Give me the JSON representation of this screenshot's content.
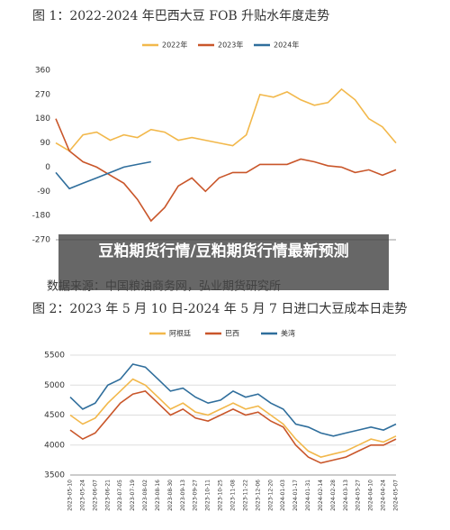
{
  "chart_data": [
    {
      "type": "line",
      "title": "图 1：2022-2024 年巴西大豆 FOB 升贴水年度走势",
      "categories": [
        null,
        null,
        null,
        null,
        null,
        null,
        null,
        null,
        null,
        null,
        null,
        null,
        null,
        null,
        null,
        null,
        null,
        null,
        null,
        null,
        null,
        null,
        null,
        null,
        null,
        null
      ],
      "series": [
        {
          "name": "2022年",
          "color": "#f2b84b",
          "values": [
            90,
            60,
            120,
            130,
            100,
            120,
            110,
            140,
            130,
            100,
            110,
            100,
            90,
            80,
            120,
            270,
            260,
            280,
            250,
            230,
            240,
            290,
            250,
            180,
            150,
            90
          ]
        },
        {
          "name": "2023年",
          "color": "#c9562a",
          "values": [
            180,
            60,
            20,
            0,
            -30,
            -60,
            -120,
            -200,
            -150,
            -70,
            -40,
            -90,
            -40,
            -20,
            -20,
            10,
            10,
            10,
            30,
            20,
            5,
            0,
            -20,
            -10,
            -30,
            -10
          ]
        },
        {
          "name": "2024年",
          "color": "#2f6e9c",
          "values": [
            -20,
            -80,
            -60,
            -40,
            -20,
            0,
            10,
            20,
            null,
            null,
            null,
            null,
            null,
            null,
            null,
            null,
            null,
            null,
            null,
            null,
            null,
            null,
            null,
            null,
            null,
            null
          ]
        }
      ],
      "ylim": [
        -270,
        360
      ],
      "yticks": [
        -270,
        -180,
        -90,
        0,
        90,
        180,
        270,
        360
      ],
      "grid": false
    },
    {
      "type": "line",
      "title": "图 2：2023 年 5 月 10 日-2024 年 5 月 7 日进口大豆成本日走势",
      "categories": [
        "2023-05-10",
        "2023-05-24",
        "2023-06-07",
        "2023-06-21",
        "2023-07-05",
        "2023-07-19",
        "2023-08-02",
        "2023-08-16",
        "2023-08-30",
        "2023-09-13",
        "2023-09-27",
        "2023-10-11",
        "2023-10-25",
        "2023-11-08",
        "2023-11-22",
        "2023-12-06",
        "2023-12-20",
        "2024-01-03",
        "2024-01-17",
        "2024-01-31",
        "2024-02-14",
        "2024-02-28",
        "2024-03-13",
        "2024-03-27",
        "2024-04-10",
        "2024-04-24",
        "2024-05-07"
      ],
      "series": [
        {
          "name": "阿根廷",
          "color": "#f2b84b",
          "values": [
            4500,
            4350,
            4450,
            4700,
            4900,
            5100,
            5000,
            4800,
            4600,
            4700,
            4550,
            4500,
            4600,
            4700,
            4600,
            4650,
            4500,
            4350,
            4100,
            3900,
            3800,
            3850,
            3900,
            4000,
            4100,
            4050,
            4150
          ]
        },
        {
          "name": "巴西",
          "color": "#c9562a",
          "values": [
            4250,
            4100,
            4200,
            4450,
            4700,
            4850,
            4900,
            4700,
            4500,
            4600,
            4450,
            4400,
            4500,
            4600,
            4500,
            4550,
            4400,
            4300,
            4000,
            3800,
            3700,
            3750,
            3800,
            3900,
            4000,
            4000,
            4100
          ]
        },
        {
          "name": "美湾",
          "color": "#2f6e9c",
          "values": [
            4800,
            4600,
            4700,
            5000,
            5100,
            5350,
            5300,
            5100,
            4900,
            4950,
            4800,
            4700,
            4750,
            4900,
            4800,
            4850,
            4700,
            4600,
            4350,
            4300,
            4200,
            4150,
            4200,
            4250,
            4300,
            4250,
            4350
          ]
        }
      ],
      "ylim": [
        3500,
        5500
      ],
      "yticks": [
        3500,
        4000,
        4500,
        5000,
        5500
      ],
      "grid": true
    }
  ],
  "source": "数据来源：中国粮油商务网，弘业期货研究所",
  "banner": "豆粕期货行情/豆粕期货行情最新预测"
}
